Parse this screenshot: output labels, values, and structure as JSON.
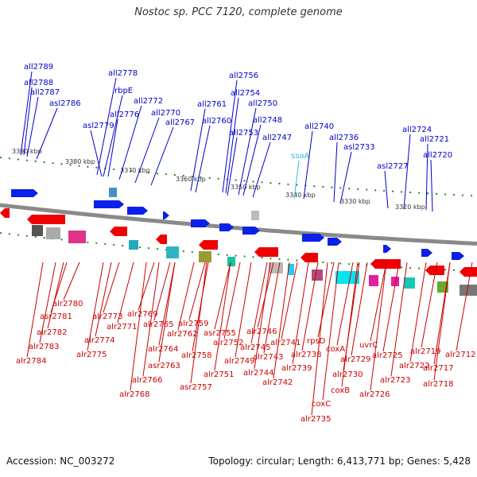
{
  "title": "Nostoc sp. PCC 7120, complete genome",
  "footer": {
    "accession_label": "Accession:",
    "accession": "NC_003272",
    "info": "Topology: circular; Length: 6,413,771 bp; Genes: 5,428"
  },
  "colors": {
    "forward_label": "#0000cc",
    "forward_rna": "#33bbdd",
    "reverse_label": "#cc0000",
    "forward_gene": "#0b20e8",
    "reverse_gene": "#ee0000",
    "backbone": "#8a8a8a",
    "ruler": "#228822"
  },
  "ruler_ticks": [
    "3390 kbp",
    "3380 kbp",
    "3370 kbp",
    "3360 kbp",
    "3350 kbp",
    "3340 kbp",
    "3330 kbp",
    "3320 kbp"
  ],
  "forward_labels": [
    "all2789",
    "all2788",
    "all2787",
    "asl2786",
    "all2778",
    "rbpE",
    "all2776",
    "asl2779",
    "all2772",
    "all2770",
    "all2767",
    "all2761",
    "all2760",
    "all2756",
    "all2754",
    "all2750",
    "all2748",
    "all2753",
    "all2747",
    "ssaA",
    "all2740",
    "all2736",
    "asl2733",
    "asl2727",
    "all2724",
    "all2721",
    "all2720"
  ],
  "reverse_labels": [
    "alr2780",
    "asr2781",
    "alr2782",
    "alr2783",
    "alr2784",
    "alr2773",
    "alr2771",
    "alr2774",
    "alr2775",
    "alr2769",
    "alr2765",
    "alr2762",
    "alr2764",
    "asr2763",
    "alr2766",
    "alr2768",
    "alr2759",
    "asr2755",
    "alr2752",
    "alr2758",
    "alr2749",
    "alr2751",
    "asr2757",
    "alr2746",
    "alr2745",
    "alr2743",
    "alr2744",
    "alr2742",
    "alr2741",
    "alr2739",
    "alr2738",
    "rpsD",
    "coxA",
    "alr2729",
    "alr2730",
    "coxB",
    "coxC",
    "alr2735",
    "uvrC",
    "alr2725",
    "alr2726",
    "alr2722",
    "alr2723",
    "alr2719",
    "alr2717",
    "alr2718",
    "alr2712"
  ]
}
